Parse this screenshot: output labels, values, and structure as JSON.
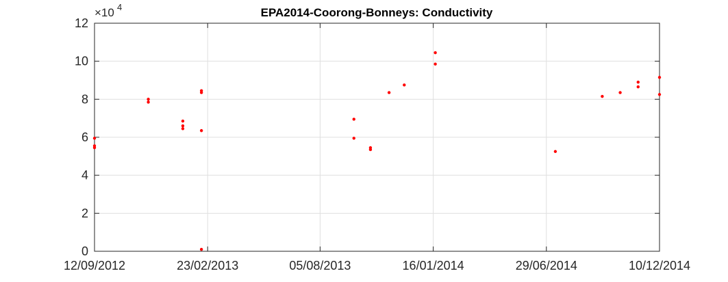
{
  "chart_data": {
    "type": "scatter",
    "title": "EPA2014-Coorong-Bonneys: Conductivity",
    "xlabel": "",
    "ylabel": "",
    "x_ticks": [
      "12/09/2012",
      "23/02/2013",
      "05/08/2013",
      "16/01/2014",
      "29/06/2014",
      "10/12/2014"
    ],
    "xlim": [
      "12/09/2012",
      "10/12/2014"
    ],
    "y_ticks": [
      0,
      2,
      4,
      6,
      8,
      10,
      12
    ],
    "ylim": [
      0,
      12
    ],
    "y_exponent": "4",
    "grid": true,
    "marker_color": "#ff0000",
    "points": [
      {
        "x": "12/09/2012",
        "y": 5.95
      },
      {
        "x": "12/09/2012",
        "y": 5.55
      },
      {
        "x": "12/09/2012",
        "y": 5.45
      },
      {
        "x": "29/11/2012",
        "y": 8.0
      },
      {
        "x": "29/11/2012",
        "y": 7.85
      },
      {
        "x": "18/01/2013",
        "y": 6.85
      },
      {
        "x": "18/01/2013",
        "y": 6.6
      },
      {
        "x": "18/01/2013",
        "y": 6.45
      },
      {
        "x": "14/02/2013",
        "y": 8.45
      },
      {
        "x": "14/02/2013",
        "y": 8.35
      },
      {
        "x": "14/02/2013",
        "y": 6.35
      },
      {
        "x": "14/02/2013",
        "y": 0.1
      },
      {
        "x": "23/09/2013",
        "y": 6.95
      },
      {
        "x": "23/09/2013",
        "y": 5.95
      },
      {
        "x": "17/10/2013",
        "y": 5.45
      },
      {
        "x": "17/10/2013",
        "y": 5.35
      },
      {
        "x": "13/11/2013",
        "y": 8.35
      },
      {
        "x": "05/12/2013",
        "y": 8.75
      },
      {
        "x": "19/01/2014",
        "y": 10.45
      },
      {
        "x": "19/01/2014",
        "y": 9.85
      },
      {
        "x": "12/07/2014",
        "y": 5.25
      },
      {
        "x": "18/09/2014",
        "y": 8.15
      },
      {
        "x": "14/10/2014",
        "y": 8.35
      },
      {
        "x": "09/11/2014",
        "y": 8.9
      },
      {
        "x": "09/11/2014",
        "y": 8.65
      },
      {
        "x": "10/12/2014",
        "y": 9.15
      },
      {
        "x": "10/12/2014",
        "y": 8.25
      }
    ]
  }
}
